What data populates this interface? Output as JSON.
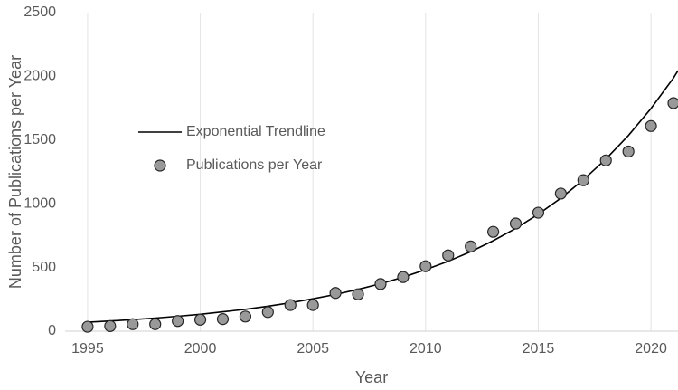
{
  "chart_data": {
    "type": "scatter",
    "x_label": "Year",
    "y_label": "Number of Publications per Year",
    "xlim": [
      1994,
      2021.2
    ],
    "ylim": [
      0,
      2500
    ],
    "xticks": [
      1995,
      2000,
      2005,
      2010,
      2015,
      2020
    ],
    "yticks": [
      0,
      500,
      1000,
      1500,
      2000,
      2500
    ],
    "grid": true,
    "legend": "left",
    "series": [
      {
        "name": "Exponential Trendline",
        "kind": "line",
        "color": "#000000",
        "x": [
          1995,
          1996,
          1997,
          1998,
          1999,
          2000,
          2001,
          2002,
          2003,
          2004,
          2005,
          2006,
          2007,
          2008,
          2009,
          2010,
          2011,
          2012,
          2013,
          2014,
          2015,
          2016,
          2017,
          2018,
          2019,
          2020,
          2021,
          2021.2
        ],
        "values": [
          70,
          80,
          91,
          103,
          117,
          133,
          152,
          172,
          196,
          223,
          254,
          288,
          328,
          373,
          424,
          483,
          549,
          624,
          710,
          807,
          918,
          1044,
          1188,
          1351,
          1536,
          1747,
          1987,
          2045
        ]
      },
      {
        "name": "Publications per Year",
        "kind": "points",
        "color": "#999999",
        "x": [
          1995,
          1996,
          1997,
          1998,
          1999,
          2000,
          2001,
          2002,
          2003,
          2004,
          2005,
          2006,
          2007,
          2008,
          2009,
          2010,
          2011,
          2012,
          2013,
          2014,
          2015,
          2016,
          2017,
          2018,
          2019,
          2020,
          2021
        ],
        "values": [
          35,
          40,
          55,
          55,
          80,
          90,
          95,
          115,
          150,
          205,
          205,
          300,
          290,
          370,
          425,
          510,
          595,
          665,
          780,
          845,
          930,
          1080,
          1185,
          1340,
          1410,
          1610,
          1790
        ]
      }
    ]
  }
}
